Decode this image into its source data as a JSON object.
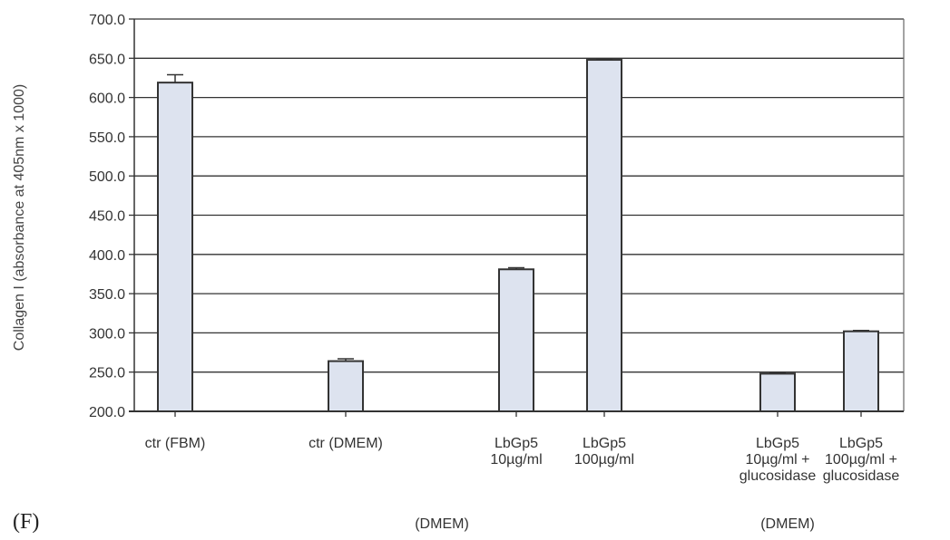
{
  "panel_label": "(F)",
  "group_labels": [
    "(DMEM)",
    "(DMEM)"
  ],
  "chart_data": {
    "type": "bar",
    "title": "",
    "xlabel": "",
    "ylabel": "Collagen I (absorbance at 405nm x 1000)",
    "ylim": [
      200,
      700
    ],
    "yticks": [
      200,
      250,
      300,
      350,
      400,
      450,
      500,
      550,
      600,
      650,
      700
    ],
    "ytick_labels": [
      "200.0",
      "250.0",
      "300.0",
      "350.0",
      "400.0",
      "450.0",
      "500.0",
      "550.0",
      "600.0",
      "650.0",
      "700.0"
    ],
    "grid": true,
    "categories": [
      [
        "ctr (FBM)"
      ],
      [
        "ctr (DMEM)"
      ],
      [
        "LbGp5",
        "10µg/ml"
      ],
      [
        "LbGp5",
        "100µg/ml"
      ],
      [
        "LbGp5",
        "10µg/ml +",
        "glucosidase"
      ],
      [
        "LbGp5",
        "100µg/ml +",
        "glucosidase"
      ]
    ],
    "values": [
      619,
      264,
      381,
      648,
      248,
      302
    ],
    "errors": [
      10,
      3,
      2,
      1,
      2,
      1
    ],
    "bar_color": "#dde3ef",
    "bar_edge_color": "#333333",
    "grid_color": "#333333"
  }
}
